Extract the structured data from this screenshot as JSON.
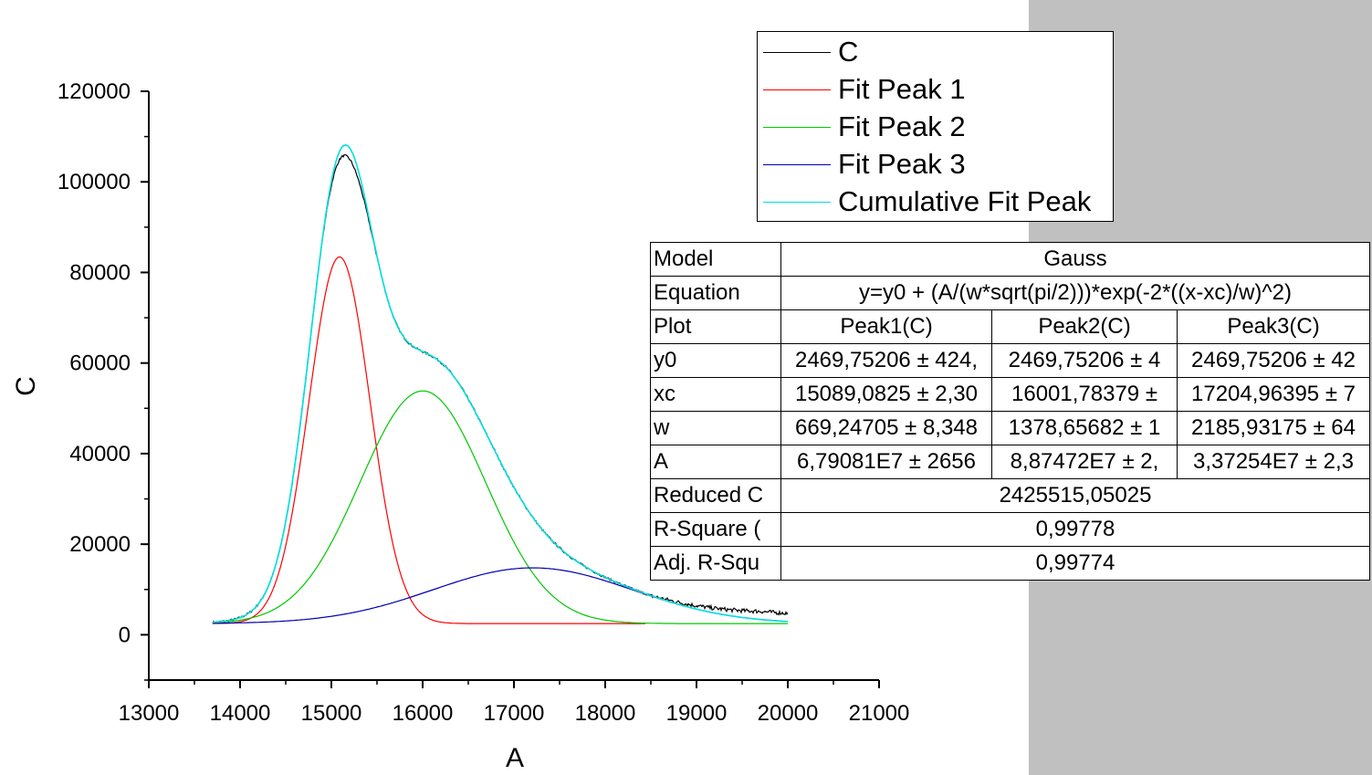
{
  "chart_data": {
    "type": "line",
    "xlabel": "A",
    "ylabel": "C",
    "xlim": [
      13000,
      21000
    ],
    "ylim": [
      -10000,
      120000
    ],
    "x_ticks": [
      "13000",
      "14000",
      "15000",
      "16000",
      "17000",
      "18000",
      "19000",
      "20000",
      "21000"
    ],
    "y_ticks": [
      "0",
      "20000",
      "40000",
      "60000",
      "80000",
      "100000",
      "120000"
    ],
    "baseline_y0": 2469.75206,
    "series": [
      {
        "name": "C",
        "color": "#000000",
        "kind": "data",
        "x_range": [
          13700,
          20000
        ]
      },
      {
        "name": "Fit Peak 1",
        "color": "#ff0000",
        "kind": "gauss",
        "xc": 15089.0825,
        "w": 669.24705,
        "A": 67908100,
        "x_range": [
          13700,
          18450
        ]
      },
      {
        "name": "Fit Peak 2",
        "color": "#00c800",
        "kind": "gauss",
        "xc": 16001.78379,
        "w": 1378.65682,
        "A": 88747200,
        "x_range": [
          13700,
          20000
        ]
      },
      {
        "name": "Fit Peak 3",
        "color": "#0000b4",
        "kind": "gauss",
        "xc": 17204.96395,
        "w": 2185.93175,
        "A": 33725400,
        "x_range": [
          13700,
          20000
        ]
      },
      {
        "name": "Cumulative Fit Peak",
        "color": "#00e0e0",
        "kind": "sum",
        "x_range": [
          13700,
          20000
        ]
      }
    ],
    "legend_position": "top-right"
  },
  "table": {
    "model_label": "Model",
    "model_value": "Gauss",
    "equation_label": "Equation",
    "equation_value": "y=y0 + (A/(w*sqrt(pi/2)))*exp(-2*((x-xc)/w)^2)",
    "plot_label": "Plot",
    "plot_headers": [
      "Peak1(C)",
      "Peak2(C)",
      "Peak3(C)"
    ],
    "param_rows": [
      {
        "label": "y0",
        "values": [
          "2469,75206 ± 424,",
          "2469,75206 ± 4",
          "2469,75206 ± 42"
        ]
      },
      {
        "label": "xc",
        "values": [
          "15089,0825 ± 2,30",
          "16001,78379 ±",
          "17204,96395 ± 7"
        ]
      },
      {
        "label": "w",
        "values": [
          "669,24705 ± 8,348",
          "1378,65682 ± 1",
          "2185,93175 ± 64"
        ]
      },
      {
        "label": "A",
        "values": [
          "6,79081E7 ± 2656",
          "8,87472E7 ± 2,",
          "3,37254E7 ± 2,3"
        ]
      }
    ],
    "reduced_label": "Reduced C",
    "reduced_value": "2425515,05025",
    "rsq_label": "R-Square (",
    "rsq_value": "0,99778",
    "adjrsq_label": "Adj. R-Squ",
    "adjrsq_value": "0,99774"
  }
}
